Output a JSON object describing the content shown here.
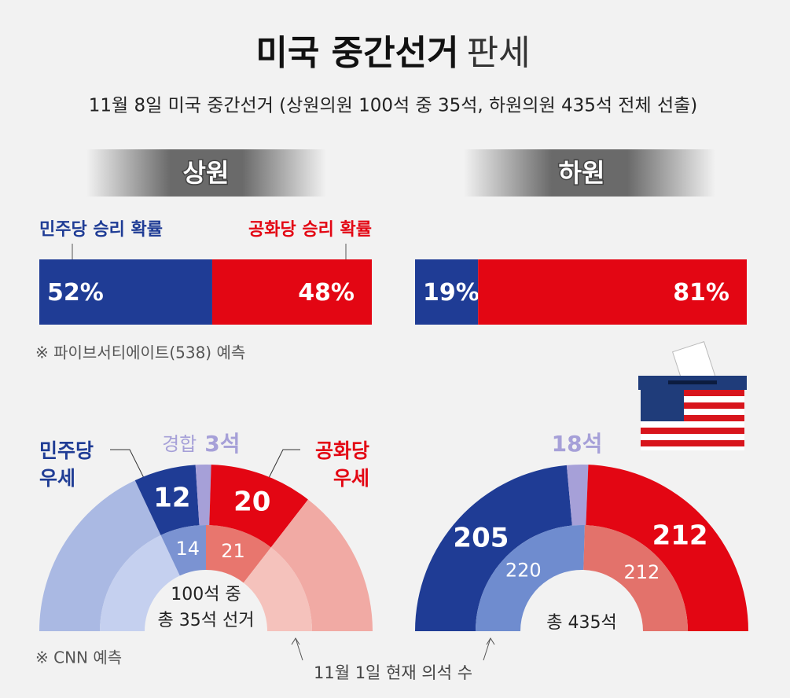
{
  "title": {
    "main": "미국 중간선거",
    "sub": "판세"
  },
  "subtitle": "11월 8일 미국 중간선거 (상원의원 100석 중 35석, 하원의원 435석 전체 선출)",
  "footnote": "11월 1일 현재 의석 수",
  "chart_data": [
    {
      "type": "stacked-bar",
      "title": "상원",
      "xlim": [
        0,
        100
      ],
      "series": [
        {
          "name": "민주당 승리 확률",
          "color": "#1f3c95",
          "values": [
            52
          ],
          "value_labels": [
            "52%"
          ]
        },
        {
          "name": "공화당 승리 확률",
          "color": "#e30613",
          "values": [
            48
          ],
          "value_labels": [
            "48%"
          ]
        }
      ],
      "note": "※ 파이브서티에이트(538) 예측"
    },
    {
      "type": "stacked-bar",
      "title": "하원",
      "xlim": [
        0,
        100
      ],
      "series": [
        {
          "color": "#1f3c95",
          "values": [
            19
          ],
          "value_labels": [
            "19%"
          ]
        },
        {
          "color": "#e30613",
          "values": [
            81
          ],
          "value_labels": [
            "81%"
          ]
        }
      ]
    },
    {
      "type": "semicircle",
      "rings": [
        {
          "values": [
            36,
            12,
            3,
            20,
            29
          ],
          "value_labels": [
            null,
            "12",
            "3석",
            "20",
            null
          ],
          "colors": [
            "#aab9e3",
            "#1f3c95",
            "#a6a0d8",
            "#e30613",
            "#f1aaa4"
          ]
        },
        {
          "values": [
            36,
            14,
            21,
            29
          ],
          "value_labels": [
            null,
            "14",
            "21",
            null
          ],
          "colors": [
            "#c5d0ef",
            "#7b93d2",
            "#e8766e",
            "#f5c2bc"
          ]
        }
      ],
      "tossup_prefix": "경합",
      "dem_label": [
        "민주당",
        "우세"
      ],
      "rep_label": [
        "공화당",
        "우세"
      ],
      "center_text": [
        "100석 중",
        "총 35석 선거"
      ],
      "note": "※ CNN 예측"
    },
    {
      "type": "semicircle",
      "rings": [
        {
          "values": [
            205,
            18,
            212
          ],
          "value_labels": [
            "205",
            "18석",
            "212"
          ],
          "colors": [
            "#1f3c95",
            "#a6a0d8",
            "#e30613"
          ]
        },
        {
          "values": [
            220,
            212
          ],
          "value_labels": [
            "220",
            "212"
          ],
          "colors": [
            "#6f8ccf",
            "#e3726b"
          ]
        }
      ],
      "center_text": [
        "총 435석"
      ]
    }
  ]
}
